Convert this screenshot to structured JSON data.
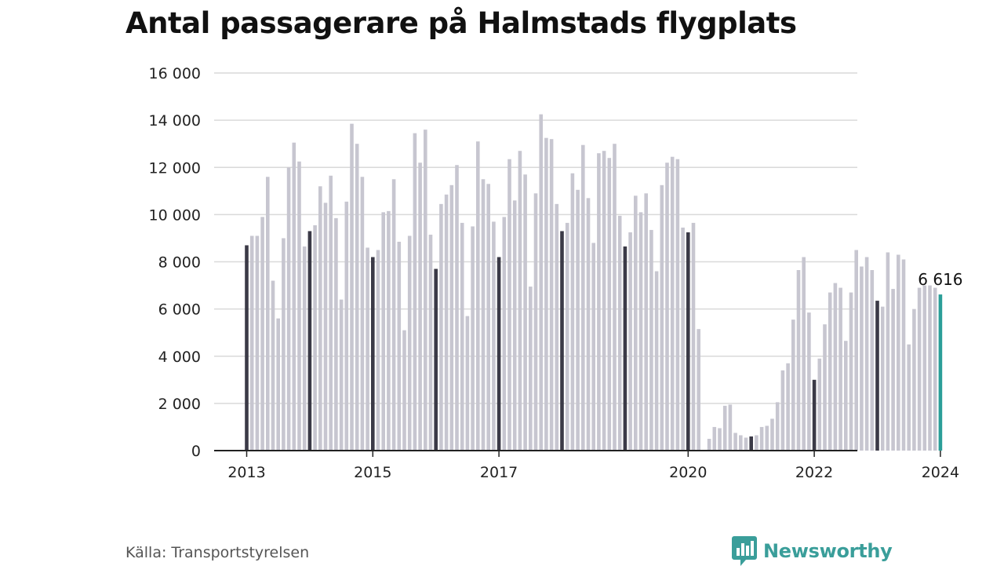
{
  "title": "Antal passagerare på Halmstads flygplats",
  "source": "Källa: Transportstyrelsen",
  "brand": {
    "name": "Newsworthy",
    "icon": "newsworthy-chart-bubble-icon"
  },
  "colors": {
    "bar": "#c7c6d0",
    "january_bar": "#3b3a47",
    "latest_bar": "#2b9e98",
    "grid": "#d9d9d9",
    "axis": "#222222",
    "brand": "#3a9e9a"
  },
  "chart_data": {
    "type": "bar",
    "title": "Antal passagerare på Halmstads flygplats",
    "xlabel": "",
    "ylabel": "",
    "ylim": [
      0,
      16000
    ],
    "yticks": [
      0,
      2000,
      4000,
      6000,
      8000,
      10000,
      12000,
      14000,
      16000
    ],
    "ytick_labels": [
      "0",
      "2 000",
      "4 000",
      "6 000",
      "8 000",
      "10 000",
      "12 000",
      "14 000",
      "16 000"
    ],
    "xtick_labels": [
      "2013",
      "2015",
      "2017",
      "2020",
      "2022",
      "2024"
    ],
    "grid": true,
    "start": "2013-01",
    "frequency": "monthly",
    "values": [
      8700,
      9100,
      9100,
      9900,
      11600,
      7200,
      5600,
      9000,
      12000,
      13050,
      12250,
      8650,
      9300,
      9550,
      11200,
      10500,
      11650,
      9850,
      6400,
      10550,
      13850,
      13000,
      11600,
      8600,
      8200,
      8500,
      10100,
      10150,
      11500,
      8850,
      5100,
      9100,
      13450,
      12200,
      13600,
      9150,
      7700,
      10450,
      10850,
      11250,
      12100,
      9650,
      5700,
      9500,
      13100,
      11500,
      11300,
      9700,
      8200,
      9900,
      12350,
      10600,
      12700,
      11700,
      6950,
      10900,
      14250,
      13250,
      13200,
      10450,
      9300,
      9650,
      11750,
      11050,
      12950,
      10700,
      8800,
      12600,
      12700,
      12400,
      13000,
      9950,
      8650,
      9250,
      10800,
      10100,
      10900,
      9350,
      7600,
      11250,
      12200,
      12450,
      12350,
      9450,
      9250,
      9650,
      5150,
      0,
      500,
      1000,
      950,
      1900,
      1950,
      750,
      650,
      550,
      600,
      650,
      1000,
      1050,
      1350,
      2050,
      3400,
      3700,
      5550,
      7650,
      8200,
      5850,
      3000,
      3900,
      5350,
      6700,
      7100,
      6900,
      4650,
      6700,
      8500,
      7800,
      8200,
      7650,
      6350,
      6100,
      8400,
      6850,
      8300,
      8100,
      4500,
      6000,
      6900,
      7000,
      7000,
      6900,
      6616
    ],
    "highlight": {
      "period": "2024-01",
      "value": 6616,
      "label": "6 616"
    }
  }
}
